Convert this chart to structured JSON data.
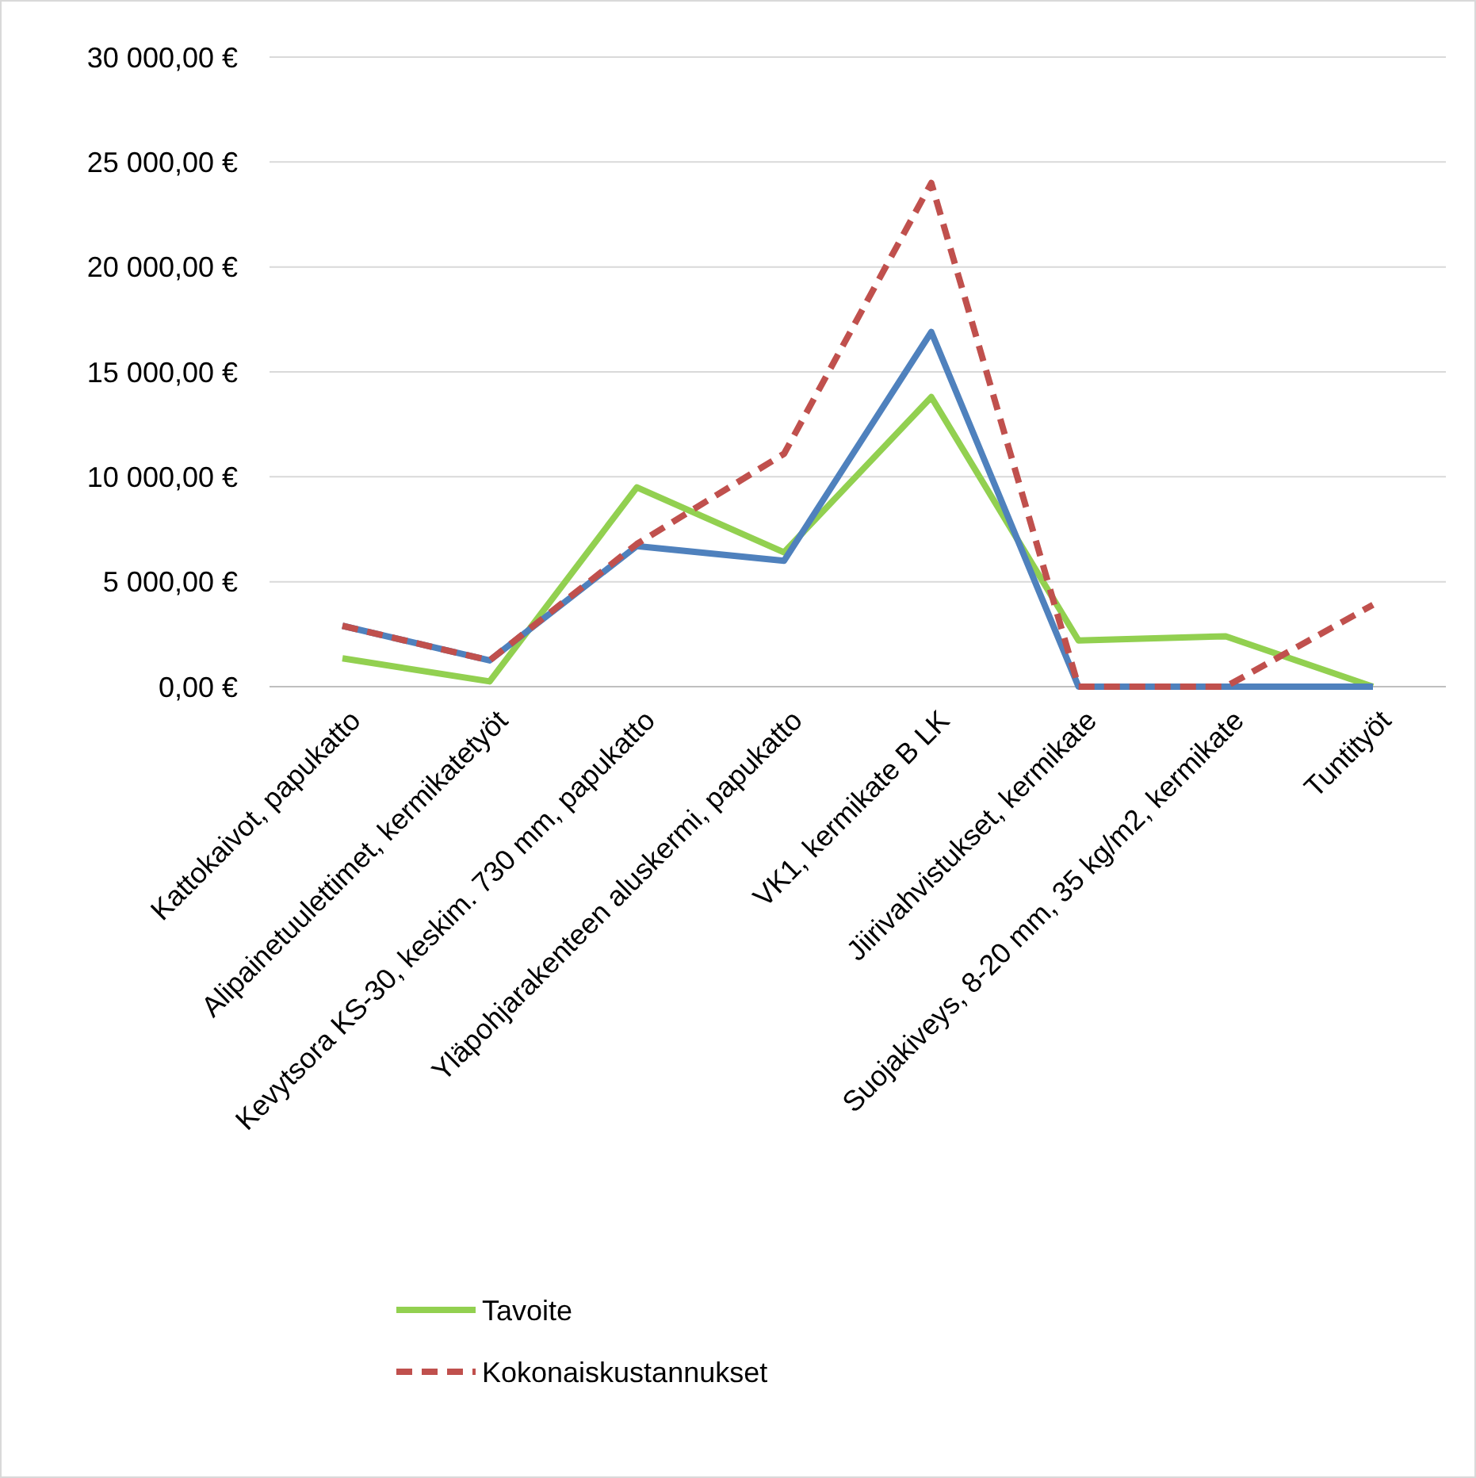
{
  "chart_data": {
    "type": "line",
    "categories": [
      "Kattokaivot, papukatto",
      "Alipainetuulettimet, kermikatetyöt",
      "Kevytsora KS-30, keskim. 730 mm, papukatto",
      "Yläpohjarakenteen aluskermi, papukatto",
      "VK1, kermikate B LK",
      "Jiirivahvistukset, kermikate",
      "Suojakiveys, 8-20 mm, 35 kg/m2, kermikate",
      "Tuntityöt"
    ],
    "series": [
      {
        "name": "Tavoite",
        "color": "#92d050",
        "line_style": "solid",
        "values": [
          1350,
          250,
          9500,
          6400,
          13800,
          2200,
          2400,
          0
        ]
      },
      {
        "color": "#4f81bd",
        "line_style": "solid",
        "values": [
          2900,
          1250,
          6700,
          6000,
          16900,
          0,
          0,
          0
        ]
      },
      {
        "name": "Kokonaiskustannukset",
        "color": "#c0504d",
        "line_style": "dashed",
        "values": [
          2900,
          1250,
          6800,
          11100,
          24000,
          0,
          0,
          3900
        ]
      }
    ],
    "ylim": [
      0,
      30000
    ],
    "yticks": [
      {
        "value": 0,
        "label": "0,00 €"
      },
      {
        "value": 5000,
        "label": "5 000,00 €"
      },
      {
        "value": 10000,
        "label": "10 000,00 €"
      },
      {
        "value": 15000,
        "label": "15 000,00 €"
      },
      {
        "value": 20000,
        "label": "20 000,00 €"
      },
      {
        "value": 25000,
        "label": "25 000,00 €"
      },
      {
        "value": 30000,
        "label": "30 000,00 €"
      }
    ],
    "grid": "y",
    "legend": "bottom"
  }
}
